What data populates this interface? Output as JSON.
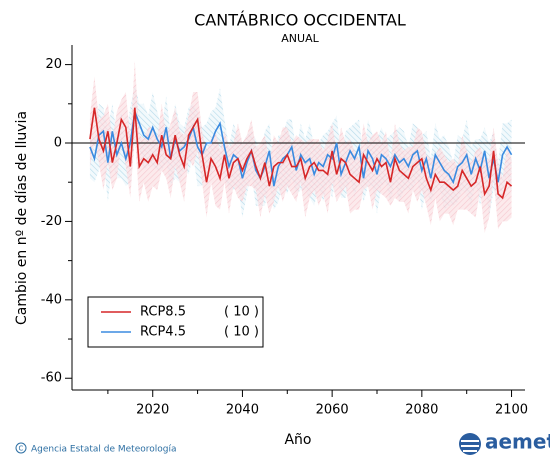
{
  "chart_data": {
    "type": "line",
    "title": "CANTÁBRICO OCCIDENTAL",
    "subtitle": "ANUAL",
    "x_label": "Año",
    "y_label": "Cambio en nº de días de lluvia",
    "source": "Agencia Estatal de Meteorología",
    "logo": "aemet",
    "xlim": [
      2002,
      2103
    ],
    "ylim": [
      -63,
      25
    ],
    "xticks": [
      2020,
      2040,
      2060,
      2080,
      2100
    ],
    "xminor_ticks": [
      2010,
      2030,
      2050,
      2070,
      2090
    ],
    "yticks": [
      20,
      0,
      -20,
      -40,
      -60
    ],
    "yminor_ticks": [
      10,
      -10,
      -30,
      -50
    ],
    "zero_line": true,
    "legend_position": "lower left",
    "x": [
      2006,
      2007,
      2008,
      2009,
      2010,
      2011,
      2012,
      2013,
      2014,
      2015,
      2016,
      2017,
      2018,
      2019,
      2020,
      2021,
      2022,
      2023,
      2024,
      2025,
      2026,
      2027,
      2028,
      2029,
      2030,
      2031,
      2032,
      2033,
      2034,
      2035,
      2036,
      2037,
      2038,
      2039,
      2040,
      2041,
      2042,
      2043,
      2044,
      2045,
      2046,
      2047,
      2048,
      2049,
      2050,
      2051,
      2052,
      2053,
      2054,
      2055,
      2056,
      2057,
      2058,
      2059,
      2060,
      2061,
      2062,
      2063,
      2064,
      2065,
      2066,
      2067,
      2068,
      2069,
      2070,
      2071,
      2072,
      2073,
      2074,
      2075,
      2076,
      2077,
      2078,
      2079,
      2080,
      2081,
      2082,
      2083,
      2084,
      2085,
      2086,
      2087,
      2088,
      2089,
      2090,
      2091,
      2092,
      2093,
      2094,
      2095,
      2096,
      2097,
      2098,
      2099,
      2100
    ],
    "series": [
      {
        "name": "RCP8.5",
        "legend_note": "( 10 )",
        "color": "#d62728",
        "band": "url(#hred)",
        "values": [
          1,
          9,
          1,
          -2,
          3,
          -5,
          0,
          6,
          4,
          -6,
          9,
          -6,
          -4,
          -5,
          -3,
          -5,
          2,
          -3,
          -4,
          2,
          -3,
          -6,
          2,
          4,
          6,
          -3,
          -10,
          -4,
          -6,
          -9,
          -3,
          -9,
          -5,
          -4,
          -7,
          -4,
          -2,
          -6,
          -9,
          -5,
          -11,
          -6,
          -5,
          -5,
          -3,
          -6,
          -6,
          -4,
          -9,
          -6,
          -5,
          -7,
          -7,
          -8,
          -2,
          -8,
          -4,
          -5,
          -8,
          -9,
          -10,
          -3,
          -5,
          -7,
          -4,
          -6,
          -5,
          -10,
          -4,
          -7,
          -8,
          -9,
          -6,
          -5,
          -4,
          -9,
          -12,
          -8,
          -10,
          -10,
          -11,
          -12,
          -11,
          -7,
          -9,
          -11,
          -10,
          -6,
          -13,
          -11,
          -2,
          -13,
          -14,
          -10,
          -11
        ],
        "upper": [
          7,
          17,
          6,
          7,
          10,
          1,
          8,
          11,
          13,
          1,
          21,
          2,
          1,
          4,
          4,
          1,
          10,
          2,
          5,
          9,
          3,
          2,
          7,
          13,
          13,
          3,
          -2,
          1,
          3,
          -2,
          3,
          -1,
          0,
          5,
          0,
          2,
          6,
          -1,
          0,
          2,
          -5,
          2,
          0,
          4,
          4,
          0,
          2,
          1,
          0,
          1,
          1,
          1,
          -2,
          1,
          5,
          -2,
          4,
          0,
          1,
          -2,
          -4,
          5,
          0,
          2,
          3,
          0,
          3,
          -5,
          5,
          0,
          -2,
          -1,
          -1,
          4,
          3,
          -3,
          -4,
          -3,
          -1,
          -3,
          -5,
          -4,
          -6,
          2,
          -2,
          -5,
          -2,
          -1,
          -4,
          -4,
          4,
          -5,
          -9,
          -1,
          -4
        ],
        "lower": [
          -6,
          0,
          -5,
          -12,
          -5,
          -12,
          -9,
          0,
          -6,
          -14,
          2,
          -15,
          -10,
          -15,
          -11,
          -12,
          -7,
          -9,
          -14,
          -6,
          -10,
          -15,
          -4,
          -6,
          -2,
          -10,
          -19,
          -10,
          -16,
          -17,
          -10,
          -18,
          -11,
          -14,
          -15,
          -11,
          -11,
          -12,
          -19,
          -13,
          -18,
          -15,
          -11,
          -15,
          -11,
          -13,
          -15,
          -10,
          -19,
          -14,
          -12,
          -16,
          -13,
          -18,
          -10,
          -15,
          -13,
          -11,
          -18,
          -17,
          -17,
          -12,
          -11,
          -17,
          -12,
          -13,
          -14,
          -16,
          -14,
          -15,
          -15,
          -18,
          -12,
          -15,
          -12,
          -16,
          -21,
          -14,
          -20,
          -18,
          -18,
          -21,
          -17,
          -17,
          -17,
          -18,
          -19,
          -12,
          -23,
          -19,
          -9,
          -22,
          -20,
          -20,
          -19
        ]
      },
      {
        "name": "RCP4.5",
        "legend_note": "( 10 )",
        "color": "#3b8be0",
        "band": "url(#hblue)",
        "values": [
          -1,
          -4,
          2,
          3,
          -5,
          3,
          -3,
          0,
          -4,
          0,
          8,
          5,
          2,
          1,
          4,
          1,
          -1,
          4,
          -4,
          1,
          -2,
          -1,
          1,
          4,
          -1,
          -3,
          0,
          0,
          3,
          5,
          -1,
          -6,
          -3,
          -4,
          -9,
          -5,
          -2,
          -7,
          -9,
          -6,
          -2,
          -11,
          -6,
          -4,
          -3,
          -1,
          -7,
          -3,
          -5,
          -4,
          -8,
          -5,
          -6,
          -3,
          -4,
          0,
          -8,
          -5,
          -2,
          -4,
          -1,
          -9,
          -2,
          -4,
          -8,
          -3,
          -4,
          -6,
          -3,
          -5,
          -4,
          -6,
          -3,
          -2,
          -7,
          -4,
          -9,
          -3,
          -5,
          -7,
          -8,
          -10,
          -6,
          -5,
          -3,
          -8,
          -4,
          -7,
          -2,
          -9,
          -4,
          -10,
          -3,
          -1,
          -3
        ],
        "upper": [
          6,
          1,
          10,
          9,
          4,
          10,
          2,
          8,
          2,
          9,
          15,
          10,
          10,
          7,
          13,
          8,
          4,
          12,
          2,
          10,
          5,
          4,
          9,
          10,
          8,
          4,
          5,
          8,
          9,
          14,
          6,
          -1,
          5,
          2,
          0,
          2,
          3,
          1,
          -3,
          3,
          5,
          -6,
          2,
          2,
          6,
          6,
          -2,
          5,
          1,
          5,
          -1,
          0,
          2,
          3,
          5,
          7,
          -3,
          3,
          4,
          5,
          6,
          -4,
          6,
          2,
          1,
          4,
          1,
          2,
          3,
          4,
          3,
          -1,
          5,
          4,
          2,
          3,
          -4,
          5,
          1,
          2,
          -1,
          -5,
          2,
          1,
          6,
          -1,
          1,
          1,
          4,
          0,
          3,
          -5,
          5,
          5,
          6
        ],
        "lower": [
          -9,
          -10,
          -7,
          -4,
          -15,
          -5,
          -9,
          -9,
          -11,
          -10,
          0,
          -1,
          -7,
          -6,
          -6,
          -7,
          -7,
          -5,
          -11,
          -9,
          -10,
          -7,
          -8,
          -3,
          -11,
          -11,
          -6,
          -9,
          -4,
          -5,
          -9,
          -12,
          -12,
          -11,
          -19,
          -13,
          -8,
          -16,
          -16,
          -16,
          -10,
          -17,
          -15,
          -11,
          -13,
          -9,
          -13,
          -12,
          -12,
          -14,
          -16,
          -11,
          -15,
          -10,
          -14,
          -8,
          -14,
          -14,
          -9,
          -14,
          -9,
          -15,
          -11,
          -11,
          -18,
          -11,
          -10,
          -15,
          -10,
          -15,
          -12,
          -12,
          -12,
          -9,
          -17,
          -12,
          -15,
          -12,
          -12,
          -17,
          -16,
          -16,
          -15,
          -12,
          -13,
          -16,
          -10,
          -16,
          -9,
          -19,
          -12,
          -16,
          -12,
          -8,
          -13
        ]
      }
    ]
  }
}
